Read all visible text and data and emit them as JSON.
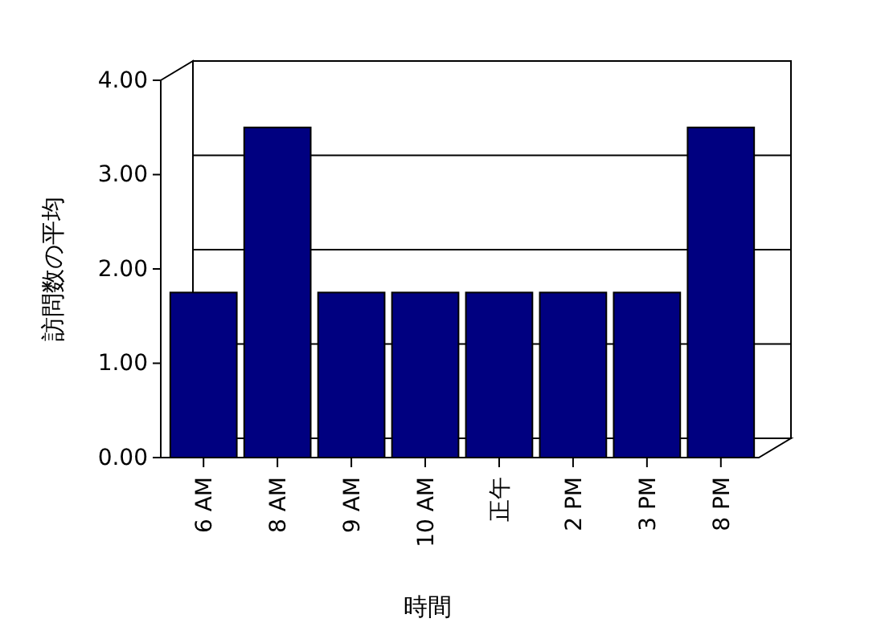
{
  "chart_data": {
    "type": "bar",
    "xlabel": "時間",
    "ylabel": "訪問数の平均",
    "categories": [
      "6 AM",
      "8 AM",
      "9 AM",
      "10 AM",
      "正午",
      "2 PM",
      "3 PM",
      "8 PM"
    ],
    "values": [
      1.75,
      3.5,
      1.75,
      1.75,
      1.75,
      1.75,
      1.75,
      3.5
    ],
    "color": "#000080",
    "ylim": [
      0,
      4
    ],
    "yticks": [
      {
        "value": 0,
        "label": "0.00"
      },
      {
        "value": 1,
        "label": "1.00"
      },
      {
        "value": 2,
        "label": "2.00"
      },
      {
        "value": 3,
        "label": "3.00"
      },
      {
        "value": 4,
        "label": "4.00"
      }
    ],
    "grid": "y"
  }
}
